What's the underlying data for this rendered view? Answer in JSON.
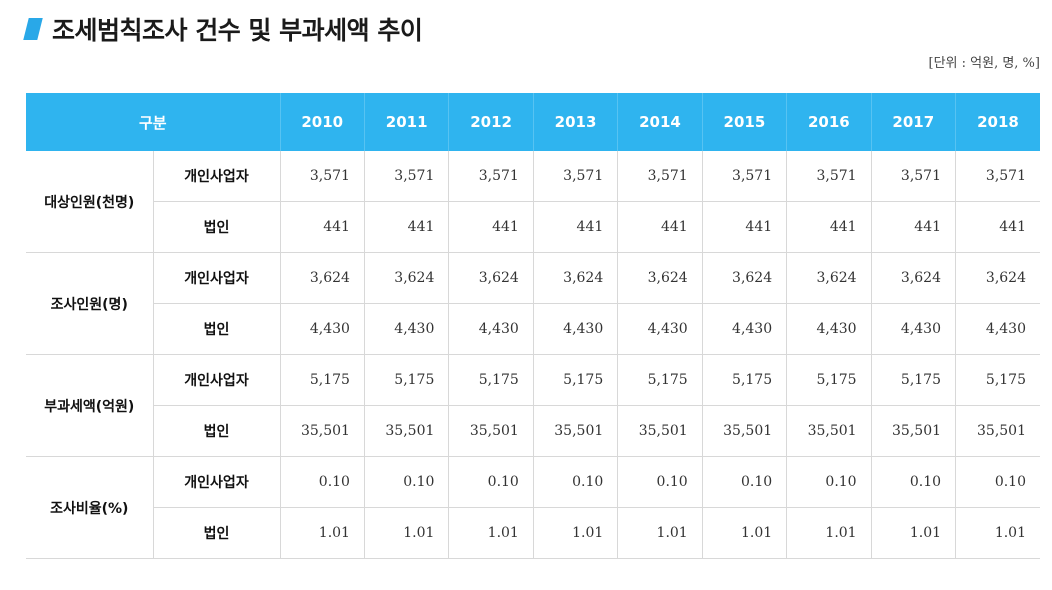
{
  "title": "조세범칙조사 건수 및 부과세액 추이",
  "unit": "[단위 : 억원, 명, %]",
  "colors": {
    "header_bg": "#2fb4ef",
    "accent_mark": "#29a8e8"
  },
  "table": {
    "header_label": "구분",
    "years": [
      "2010",
      "2011",
      "2012",
      "2013",
      "2014",
      "2015",
      "2016",
      "2017",
      "2018"
    ],
    "groups": [
      {
        "label": "대상인원(천명)",
        "rows": [
          {
            "label": "개인사업자",
            "values": [
              "3,571",
              "3,571",
              "3,571",
              "3,571",
              "3,571",
              "3,571",
              "3,571",
              "3,571",
              "3,571"
            ]
          },
          {
            "label": "법인",
            "values": [
              "441",
              "441",
              "441",
              "441",
              "441",
              "441",
              "441",
              "441",
              "441"
            ]
          }
        ]
      },
      {
        "label": "조사인원(명)",
        "rows": [
          {
            "label": "개인사업자",
            "values": [
              "3,624",
              "3,624",
              "3,624",
              "3,624",
              "3,624",
              "3,624",
              "3,624",
              "3,624",
              "3,624"
            ]
          },
          {
            "label": "법인",
            "values": [
              "4,430",
              "4,430",
              "4,430",
              "4,430",
              "4,430",
              "4,430",
              "4,430",
              "4,430",
              "4,430"
            ]
          }
        ]
      },
      {
        "label": "부과세액(억원)",
        "rows": [
          {
            "label": "개인사업자",
            "values": [
              "5,175",
              "5,175",
              "5,175",
              "5,175",
              "5,175",
              "5,175",
              "5,175",
              "5,175",
              "5,175"
            ]
          },
          {
            "label": "법인",
            "values": [
              "35,501",
              "35,501",
              "35,501",
              "35,501",
              "35,501",
              "35,501",
              "35,501",
              "35,501",
              "35,501"
            ]
          }
        ]
      },
      {
        "label": "조사비율(%)",
        "rows": [
          {
            "label": "개인사업자",
            "values": [
              "0.10",
              "0.10",
              "0.10",
              "0.10",
              "0.10",
              "0.10",
              "0.10",
              "0.10",
              "0.10"
            ]
          },
          {
            "label": "법인",
            "values": [
              "1.01",
              "1.01",
              "1.01",
              "1.01",
              "1.01",
              "1.01",
              "1.01",
              "1.01",
              "1.01"
            ]
          }
        ]
      }
    ]
  }
}
